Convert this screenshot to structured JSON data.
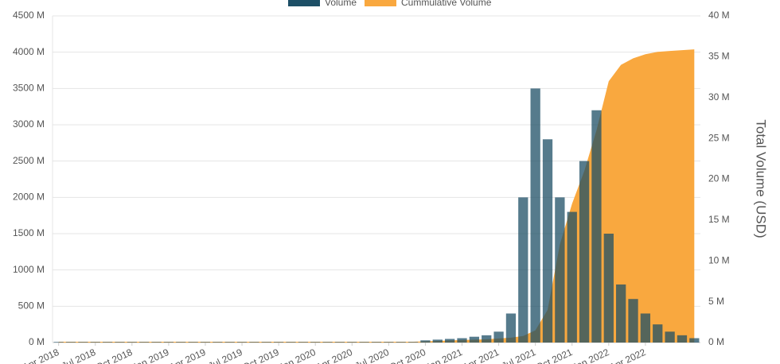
{
  "chart_data": {
    "type": "bar-area",
    "y2label": "Total Volume (USD)",
    "categories": [
      "Apr 2018",
      null,
      null,
      "Jul 2018",
      null,
      null,
      "Oct 2018",
      null,
      null,
      "Jan 2019",
      null,
      null,
      "Apr 2019",
      null,
      null,
      "Jul 2019",
      null,
      null,
      "Oct 2019",
      null,
      null,
      "Jan 2020",
      null,
      null,
      "Apr 2020",
      null,
      null,
      "Jul 2020",
      null,
      null,
      "Oct 2020",
      null,
      null,
      "Jan 2021",
      null,
      null,
      "Apr 2021",
      null,
      null,
      "Jul 2021",
      null,
      null,
      "Oct 2021",
      null,
      null,
      "Jan 2022",
      null,
      null,
      "Apr 2022",
      null,
      null,
      null,
      null
    ],
    "series": [
      {
        "name": "Volume",
        "color": "#1d4f66",
        "axis": "y",
        "values": [
          8,
          8,
          8,
          8,
          8,
          8,
          8,
          8,
          8,
          8,
          8,
          8,
          8,
          8,
          8,
          8,
          8,
          8,
          8,
          8,
          8,
          8,
          8,
          8,
          8,
          8,
          8,
          8,
          8,
          8,
          30,
          40,
          50,
          60,
          80,
          100,
          150,
          400,
          2000,
          3500,
          2800,
          2000,
          1800,
          2500,
          3200,
          1500,
          800,
          600,
          400,
          250,
          150,
          100,
          60
        ]
      },
      {
        "name": "Cummulative Volume",
        "color": "#f9a83f",
        "axis": "y2",
        "values": [
          0.1,
          0.1,
          0.1,
          0.1,
          0.1,
          0.1,
          0.1,
          0.1,
          0.1,
          0.1,
          0.1,
          0.1,
          0.1,
          0.1,
          0.1,
          0.1,
          0.1,
          0.1,
          0.1,
          0.1,
          0.1,
          0.1,
          0.1,
          0.1,
          0.1,
          0.1,
          0.1,
          0.1,
          0.1,
          0.1,
          0.15,
          0.2,
          0.25,
          0.3,
          0.35,
          0.4,
          0.5,
          0.6,
          0.8,
          1.5,
          4,
          12,
          17,
          21,
          26,
          32,
          34,
          34.8,
          35.3,
          35.6,
          35.7,
          35.8,
          35.9
        ]
      }
    ],
    "ylim": [
      0,
      4500
    ],
    "yticks": [
      {
        "value": 0,
        "label": "0 M"
      },
      {
        "value": 500,
        "label": "500 M"
      },
      {
        "value": 1000,
        "label": "1000 M"
      },
      {
        "value": 1500,
        "label": "1500 M"
      },
      {
        "value": 2000,
        "label": "2000 M"
      },
      {
        "value": 2500,
        "label": "2500 M"
      },
      {
        "value": 3000,
        "label": "3000 M"
      },
      {
        "value": 3500,
        "label": "3500 M"
      },
      {
        "value": 4000,
        "label": "4000 M"
      },
      {
        "value": 4500,
        "label": "4500 M"
      }
    ],
    "y2lim": [
      0,
      40
    ],
    "y2ticks": [
      {
        "value": 0,
        "label": "0 M"
      },
      {
        "value": 5,
        "label": "5 M"
      },
      {
        "value": 10,
        "label": "10 M"
      },
      {
        "value": 15,
        "label": "15 M"
      },
      {
        "value": 20,
        "label": "20 M"
      },
      {
        "value": 25,
        "label": "25 M"
      },
      {
        "value": 30,
        "label": "30 M"
      },
      {
        "value": 35,
        "label": "35 M"
      },
      {
        "value": 40,
        "label": "40 M"
      }
    ],
    "grid": true
  }
}
